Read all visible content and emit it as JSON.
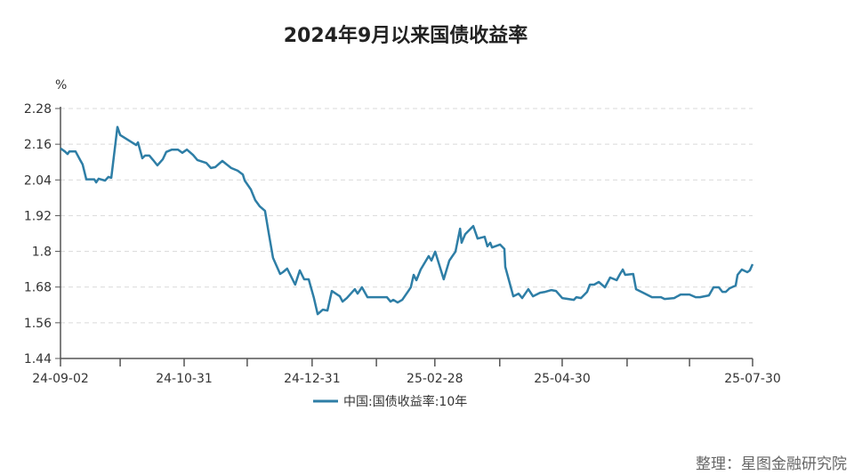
{
  "chart_data": {
    "type": "line",
    "title": "2024年9月以来国债收益率",
    "ylabel": "%",
    "xlabel": "",
    "ylim": [
      1.44,
      2.28
    ],
    "yticks": [
      1.44,
      1.56,
      1.68,
      1.8,
      1.92,
      2.04,
      2.16,
      2.28
    ],
    "ytick_labels": [
      "1.44",
      "1.56",
      "1.68",
      "1.8",
      "1.92",
      "2.04",
      "2.16",
      "2.28"
    ],
    "x_unit": "trading-day index",
    "xlim": [
      0,
      225
    ],
    "xticks": [
      0,
      19.4,
      40.2,
      60.7,
      81.8,
      102.7,
      121.7,
      142.8,
      163.1,
      184.2,
      204.5,
      225
    ],
    "xtick_labels": [
      {
        "x": 0,
        "label": "24-09-02"
      },
      {
        "x": 40.2,
        "label": "24-10-31"
      },
      {
        "x": 81.8,
        "label": "24-12-31"
      },
      {
        "x": 121.7,
        "label": "25-02-28"
      },
      {
        "x": 163.1,
        "label": "25-04-30"
      },
      {
        "x": 225,
        "label": "25-07-30"
      }
    ],
    "grid": true,
    "legend_position": "bottom-center",
    "series": [
      {
        "name": "中国:国债收益率:10年",
        "color": "#2e7ea6",
        "points": [
          [
            0,
            2.146
          ],
          [
            1.4,
            2.136
          ],
          [
            2.3,
            2.127
          ],
          [
            2.9,
            2.136
          ],
          [
            4.9,
            2.136
          ],
          [
            6.4,
            2.107
          ],
          [
            7.2,
            2.092
          ],
          [
            8.4,
            2.042
          ],
          [
            11.0,
            2.042
          ],
          [
            11.6,
            2.032
          ],
          [
            12.4,
            2.044
          ],
          [
            14.5,
            2.038
          ],
          [
            15.6,
            2.05
          ],
          [
            16.5,
            2.047
          ],
          [
            18.5,
            2.218
          ],
          [
            19.4,
            2.191
          ],
          [
            24.6,
            2.157
          ],
          [
            25.2,
            2.166
          ],
          [
            26.6,
            2.113
          ],
          [
            27.5,
            2.122
          ],
          [
            28.9,
            2.122
          ],
          [
            30.1,
            2.107
          ],
          [
            31.5,
            2.089
          ],
          [
            33.3,
            2.11
          ],
          [
            34.4,
            2.134
          ],
          [
            36.2,
            2.142
          ],
          [
            38.2,
            2.142
          ],
          [
            39.6,
            2.131
          ],
          [
            41.1,
            2.142
          ],
          [
            43.1,
            2.124
          ],
          [
            44.5,
            2.107
          ],
          [
            47.4,
            2.097
          ],
          [
            48.9,
            2.08
          ],
          [
            50.3,
            2.083
          ],
          [
            52.6,
            2.104
          ],
          [
            55.5,
            2.08
          ],
          [
            57.6,
            2.071
          ],
          [
            59.3,
            2.058
          ],
          [
            59.9,
            2.038
          ],
          [
            61.9,
            2.008
          ],
          [
            63.3,
            1.972
          ],
          [
            64.8,
            1.951
          ],
          [
            66.5,
            1.936
          ],
          [
            67.7,
            1.861
          ],
          [
            69.1,
            1.778
          ],
          [
            71.4,
            1.724
          ],
          [
            72.3,
            1.73
          ],
          [
            73.7,
            1.742
          ],
          [
            76.3,
            1.688
          ],
          [
            77.8,
            1.736
          ],
          [
            79.2,
            1.706
          ],
          [
            80.7,
            1.706
          ],
          [
            82.4,
            1.643
          ],
          [
            83.6,
            1.589
          ],
          [
            85.3,
            1.604
          ],
          [
            86.8,
            1.601
          ],
          [
            88.2,
            1.667
          ],
          [
            90.8,
            1.649
          ],
          [
            91.7,
            1.631
          ],
          [
            93.1,
            1.643
          ],
          [
            95.7,
            1.673
          ],
          [
            96.6,
            1.658
          ],
          [
            98.0,
            1.679
          ],
          [
            99.8,
            1.646
          ],
          [
            106.1,
            1.646
          ],
          [
            107.3,
            1.631
          ],
          [
            108.2,
            1.637
          ],
          [
            109.6,
            1.628
          ],
          [
            111.1,
            1.637
          ],
          [
            113.1,
            1.667
          ],
          [
            113.9,
            1.679
          ],
          [
            114.8,
            1.721
          ],
          [
            115.7,
            1.703
          ],
          [
            117.1,
            1.739
          ],
          [
            119.7,
            1.784
          ],
          [
            120.6,
            1.769
          ],
          [
            121.8,
            1.799
          ],
          [
            124.6,
            1.706
          ],
          [
            126.4,
            1.769
          ],
          [
            128.4,
            1.799
          ],
          [
            129.9,
            1.876
          ],
          [
            130.4,
            1.829
          ],
          [
            131.6,
            1.858
          ],
          [
            134.2,
            1.885
          ],
          [
            135.6,
            1.843
          ],
          [
            137.9,
            1.849
          ],
          [
            138.8,
            1.817
          ],
          [
            139.7,
            1.829
          ],
          [
            140.3,
            1.813
          ],
          [
            142.9,
            1.823
          ],
          [
            144.3,
            1.808
          ],
          [
            144.6,
            1.748
          ],
          [
            147.2,
            1.649
          ],
          [
            148.9,
            1.658
          ],
          [
            150.1,
            1.643
          ],
          [
            152.1,
            1.673
          ],
          [
            153.6,
            1.649
          ],
          [
            155.9,
            1.661
          ],
          [
            157.6,
            1.664
          ],
          [
            159.6,
            1.67
          ],
          [
            161.1,
            1.667
          ],
          [
            163.1,
            1.643
          ],
          [
            166.9,
            1.637
          ],
          [
            167.7,
            1.646
          ],
          [
            169.2,
            1.643
          ],
          [
            171.2,
            1.664
          ],
          [
            172.1,
            1.688
          ],
          [
            173.5,
            1.688
          ],
          [
            175.0,
            1.697
          ],
          [
            177.0,
            1.679
          ],
          [
            178.7,
            1.712
          ],
          [
            180.8,
            1.703
          ],
          [
            181.9,
            1.724
          ],
          [
            182.8,
            1.739
          ],
          [
            183.6,
            1.721
          ],
          [
            186.2,
            1.724
          ],
          [
            187.1,
            1.673
          ],
          [
            190.0,
            1.658
          ],
          [
            192.3,
            1.646
          ],
          [
            195.2,
            1.646
          ],
          [
            196.4,
            1.64
          ],
          [
            199.5,
            1.643
          ],
          [
            201.6,
            1.655
          ],
          [
            204.5,
            1.655
          ],
          [
            206.5,
            1.646
          ],
          [
            207.9,
            1.646
          ],
          [
            210.8,
            1.652
          ],
          [
            212.3,
            1.679
          ],
          [
            214.0,
            1.679
          ],
          [
            215.2,
            1.664
          ],
          [
            216.3,
            1.664
          ],
          [
            217.5,
            1.676
          ],
          [
            219.5,
            1.685
          ],
          [
            220.1,
            1.721
          ],
          [
            221.5,
            1.739
          ],
          [
            223.3,
            1.73
          ],
          [
            224.1,
            1.736
          ],
          [
            225,
            1.757
          ]
        ]
      }
    ],
    "source_note": "整理：星图金融研究院"
  }
}
